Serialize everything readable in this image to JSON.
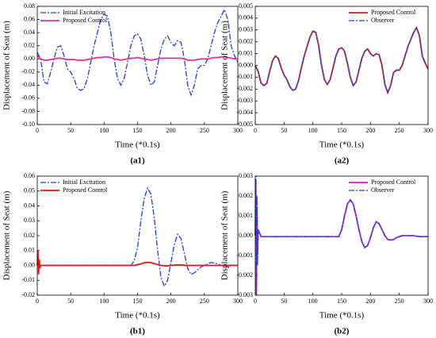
{
  "chart_data": [
    {
      "type": "line",
      "caption": "(a1)",
      "xlabel": "Time (*0.1s)",
      "ylabel": "Displacement of Seat (m)",
      "legend": "upper left",
      "xlim": [
        0,
        300
      ],
      "xticks": [
        0,
        50,
        100,
        150,
        200,
        250,
        300
      ],
      "ylim": [
        -0.1,
        0.08
      ],
      "yticks": [
        {
          "value": -0.1,
          "label": "-0.10"
        },
        -0.08,
        -0.06,
        -0.04,
        -0.02,
        {
          "value": 0,
          "label": "0.00"
        },
        0.02,
        0.04,
        0.06,
        0.08
      ],
      "x": [
        0,
        5,
        10,
        15,
        20,
        25,
        30,
        35,
        40,
        45,
        50,
        55,
        60,
        65,
        70,
        75,
        80,
        85,
        90,
        95,
        100,
        105,
        110,
        115,
        120,
        125,
        130,
        135,
        140,
        145,
        150,
        155,
        160,
        165,
        170,
        175,
        180,
        185,
        190,
        195,
        200,
        205,
        210,
        215,
        220,
        225,
        230,
        235,
        240,
        245,
        250,
        255,
        260,
        265,
        270,
        275,
        280,
        285,
        290,
        295,
        300
      ],
      "series": [
        {
          "name": "Initial Excitation",
          "color": "#1f3fd6",
          "style": "dashdot",
          "values": [
            0.01,
            0.0,
            -0.035,
            -0.038,
            -0.02,
            0.0,
            0.018,
            0.02,
            0.005,
            -0.015,
            -0.02,
            -0.03,
            -0.045,
            -0.048,
            -0.045,
            -0.03,
            -0.005,
            0.02,
            0.04,
            0.06,
            0.068,
            0.065,
            0.04,
            0.0,
            -0.03,
            -0.04,
            -0.03,
            -0.005,
            0.02,
            0.035,
            0.038,
            0.03,
            0.005,
            -0.025,
            -0.04,
            -0.035,
            -0.01,
            0.015,
            0.03,
            0.035,
            0.025,
            0.02,
            0.028,
            0.025,
            0.0,
            -0.04,
            -0.055,
            -0.04,
            -0.015,
            -0.01,
            -0.01,
            0.0,
            0.02,
            0.04,
            0.055,
            0.065,
            0.075,
            0.06,
            0.02,
            0.005,
            -0.005
          ]
        },
        {
          "name": "Proposed Control",
          "color": "#e8308f",
          "style": "solid",
          "values": [
            0.005,
            0.0,
            -0.002,
            -0.002,
            -0.001,
            0.0,
            0.001,
            0.001,
            0.0,
            -0.001,
            -0.001,
            -0.001,
            -0.002,
            -0.002,
            -0.002,
            -0.001,
            0.0,
            0.001,
            0.002,
            0.002,
            0.003,
            0.003,
            0.002,
            0.0,
            -0.001,
            -0.002,
            -0.001,
            0.0,
            0.001,
            0.001,
            0.002,
            0.001,
            0.0,
            -0.001,
            -0.002,
            -0.001,
            0.0,
            0.001,
            0.001,
            0.001,
            0.001,
            0.001,
            0.001,
            0.001,
            0.0,
            -0.002,
            -0.002,
            -0.002,
            -0.001,
            0.0,
            0.0,
            0.0,
            0.001,
            0.002,
            0.002,
            0.003,
            0.003,
            0.002,
            0.001,
            0.0,
            0.0
          ]
        }
      ]
    },
    {
      "type": "line",
      "caption": "(a2)",
      "xlabel": "Time (*0.1s)",
      "ylabel": "Displacement of Seat (m)",
      "legend": "upper right",
      "xlim": [
        0,
        300
      ],
      "xticks": [
        0,
        50,
        100,
        150,
        200,
        250,
        300
      ],
      "ylim": [
        -0.005,
        0.005
      ],
      "yticks": [
        -0.005,
        -0.004,
        -0.003,
        -0.002,
        -0.001,
        {
          "value": 0,
          "label": "0.000"
        },
        0.001,
        0.002,
        0.003,
        0.004,
        0.005
      ],
      "x": [
        0,
        5,
        10,
        15,
        20,
        25,
        30,
        35,
        40,
        45,
        50,
        55,
        60,
        65,
        70,
        75,
        80,
        85,
        90,
        95,
        100,
        105,
        110,
        115,
        120,
        125,
        130,
        135,
        140,
        145,
        150,
        155,
        160,
        165,
        170,
        175,
        180,
        185,
        190,
        195,
        200,
        205,
        210,
        215,
        220,
        225,
        230,
        235,
        240,
        245,
        250,
        255,
        260,
        265,
        270,
        275,
        280,
        285,
        290,
        295,
        300
      ],
      "series": [
        {
          "name": "Proposed Control",
          "color": "#e01818",
          "style": "solid",
          "values": [
            0.0,
            -0.0005,
            -0.0015,
            -0.0017,
            -0.0015,
            -0.0005,
            0.0004,
            0.0008,
            0.0006,
            -0.0002,
            -0.0008,
            -0.0012,
            -0.0018,
            -0.0021,
            -0.002,
            -0.0013,
            -0.0002,
            0.0008,
            0.0016,
            0.0024,
            0.0029,
            0.0028,
            0.0017,
            0.0,
            -0.0012,
            -0.0016,
            -0.0012,
            -0.0002,
            0.0008,
            0.0014,
            0.0015,
            0.0012,
            0.0002,
            -0.001,
            -0.0017,
            -0.0014,
            -0.0004,
            0.0006,
            0.0012,
            0.0014,
            0.001,
            0.0008,
            0.001,
            0.0009,
            0.0,
            -0.0016,
            -0.0023,
            -0.0017,
            -0.0006,
            -0.0004,
            -0.0004,
            0.0,
            0.0008,
            0.0016,
            0.0022,
            0.0028,
            0.0032,
            0.0025,
            0.0008,
            0.0002,
            -0.0003
          ]
        },
        {
          "name": "Observer",
          "color": "#1f3fd6",
          "style": "dashdot",
          "values": [
            0.0,
            -0.0005,
            -0.0015,
            -0.0017,
            -0.0015,
            -0.0005,
            0.0004,
            0.0008,
            0.0006,
            -0.0002,
            -0.0008,
            -0.0012,
            -0.0018,
            -0.0021,
            -0.002,
            -0.0013,
            -0.0002,
            0.0008,
            0.0016,
            0.0024,
            0.0029,
            0.0028,
            0.0017,
            0.0,
            -0.0012,
            -0.0016,
            -0.0012,
            -0.0002,
            0.0008,
            0.0014,
            0.0015,
            0.0012,
            0.0002,
            -0.001,
            -0.0017,
            -0.0014,
            -0.0004,
            0.0006,
            0.0012,
            0.0014,
            0.001,
            0.0008,
            0.001,
            0.0009,
            0.0,
            -0.0016,
            -0.0023,
            -0.0017,
            -0.0006,
            -0.0004,
            -0.0004,
            0.0,
            0.0008,
            0.0016,
            0.0022,
            0.0028,
            0.0032,
            0.0025,
            0.0008,
            0.0002,
            -0.0003
          ]
        }
      ]
    },
    {
      "type": "line",
      "caption": "(b1)",
      "xlabel": "Time (*0.1s)",
      "ylabel": "Displacement of Seat (m)",
      "legend": "upper left",
      "xlim": [
        0,
        300
      ],
      "xticks": [
        0,
        50,
        100,
        150,
        200,
        250,
        300
      ],
      "ylim": [
        -0.02,
        0.06
      ],
      "yticks": [
        -0.02,
        -0.01,
        {
          "value": 0,
          "label": "0.00"
        },
        0.01,
        0.02,
        0.03,
        0.04,
        0.05,
        0.06
      ],
      "x": [
        0,
        1,
        2,
        3,
        4,
        5,
        10,
        15,
        20,
        25,
        30,
        35,
        40,
        45,
        50,
        55,
        60,
        65,
        70,
        75,
        80,
        85,
        90,
        95,
        100,
        105,
        110,
        115,
        120,
        125,
        130,
        135,
        140,
        145,
        150,
        155,
        160,
        165,
        170,
        175,
        180,
        185,
        190,
        195,
        200,
        205,
        210,
        215,
        220,
        225,
        230,
        235,
        240,
        245,
        250,
        255,
        260,
        265,
        270,
        275,
        280,
        285,
        290,
        295,
        300
      ],
      "series": [
        {
          "name": "Initial Excitation",
          "color": "#1f3fd6",
          "style": "dashdot",
          "values": [
            0,
            0,
            0,
            0,
            0,
            0,
            0,
            0,
            0,
            0,
            0,
            0,
            0,
            0,
            0,
            0,
            0,
            0,
            0,
            0,
            0,
            0,
            0,
            0,
            0,
            0,
            0,
            0,
            0,
            0,
            0,
            0,
            0.0,
            0.003,
            0.012,
            0.03,
            0.045,
            0.052,
            0.048,
            0.032,
            0.01,
            -0.008,
            -0.014,
            -0.01,
            0.002,
            0.014,
            0.021,
            0.018,
            0.008,
            -0.002,
            -0.006,
            -0.005,
            -0.003,
            -0.001,
            0.0,
            0.001,
            0.002,
            0.0015,
            0.001,
            0.0,
            -0.0005,
            -0.0005,
            0.0,
            0.0,
            0.0
          ]
        },
        {
          "name": "Proposed Control",
          "color": "#e01818",
          "style": "solid",
          "values": [
            0.0,
            0.01,
            -0.006,
            0.004,
            -0.002,
            0,
            0,
            0,
            0,
            0,
            0,
            0,
            0,
            0,
            0,
            0,
            0,
            0,
            0,
            0,
            0,
            0,
            0,
            0,
            0,
            0,
            0,
            0,
            0,
            0,
            0,
            0,
            0,
            0,
            0.0005,
            0.001,
            0.0018,
            0.002,
            0.0018,
            0.0012,
            0.0005,
            0.0,
            -0.0003,
            -0.0003,
            0,
            0.0002,
            0.0003,
            0.0003,
            0.0001,
            0,
            0,
            0,
            0,
            0,
            0,
            0,
            0,
            0,
            0,
            0,
            0,
            0,
            0,
            0,
            0
          ]
        }
      ]
    },
    {
      "type": "line",
      "caption": "(b2)",
      "xlabel": "Time (*0.1s)",
      "ylabel": "Displacement of Seat (m)",
      "legend": "upper right",
      "xlim": [
        0,
        300
      ],
      "xticks": [
        0,
        50,
        100,
        150,
        200,
        250,
        300
      ],
      "ylim": [
        -0.003,
        0.003
      ],
      "yticks": [
        -0.003,
        -0.002,
        -0.001,
        {
          "value": 0,
          "label": "0.000"
        },
        0.001,
        0.002,
        0.003
      ],
      "x": [
        0,
        1,
        2,
        3,
        4,
        5,
        10,
        15,
        20,
        25,
        30,
        35,
        40,
        45,
        50,
        55,
        60,
        65,
        70,
        75,
        80,
        85,
        90,
        95,
        100,
        105,
        110,
        115,
        120,
        125,
        130,
        135,
        140,
        145,
        150,
        155,
        160,
        165,
        170,
        175,
        180,
        185,
        190,
        195,
        200,
        205,
        210,
        215,
        220,
        225,
        230,
        235,
        240,
        245,
        250,
        255,
        260,
        265,
        270,
        275,
        280,
        285,
        290,
        295,
        300
      ],
      "series": [
        {
          "name": "Proposed Control",
          "color": "#cc22cc",
          "style": "solid",
          "values": [
            0.0,
            0.0028,
            -0.0029,
            0.0015,
            -0.001,
            0.0003,
            -5e-05,
            -5e-05,
            -5e-05,
            -5e-05,
            -5e-05,
            -5e-05,
            -5e-05,
            -5e-05,
            -5e-05,
            -5e-05,
            -5e-05,
            -5e-05,
            -5e-05,
            -5e-05,
            -5e-05,
            -5e-05,
            -5e-05,
            -5e-05,
            -5e-05,
            -5e-05,
            -5e-05,
            -5e-05,
            -5e-05,
            -5e-05,
            -5e-05,
            -5e-05,
            -5e-05,
            -5e-05,
            0.0003,
            0.001,
            0.0016,
            0.0018,
            0.0016,
            0.001,
            0.0003,
            -0.0003,
            -0.0006,
            -0.0005,
            -0.0001,
            0.0004,
            0.0007,
            0.0006,
            0.0003,
            0.0,
            -0.0002,
            -0.00022,
            -0.0002,
            -0.0001,
            -5e-05,
            0.0,
            0.0,
            0.0,
            0.0,
            0.0,
            -3e-05,
            -5e-05,
            -5e-05,
            -5e-05,
            -5e-05
          ]
        },
        {
          "name": "Observer",
          "color": "#1f3fd6",
          "style": "dashdot",
          "values": [
            0.0,
            0.003,
            -0.003,
            0.002,
            -0.0015,
            0.0003,
            -5e-05,
            -5e-05,
            -5e-05,
            -5e-05,
            -5e-05,
            -5e-05,
            -5e-05,
            -5e-05,
            -5e-05,
            -5e-05,
            -5e-05,
            -5e-05,
            -5e-05,
            -5e-05,
            -5e-05,
            -5e-05,
            -5e-05,
            -5e-05,
            -5e-05,
            -5e-05,
            -5e-05,
            -5e-05,
            -5e-05,
            -5e-05,
            -5e-05,
            -5e-05,
            -5e-05,
            -5e-05,
            0.0003,
            0.001,
            0.0016,
            0.0018,
            0.0016,
            0.001,
            0.0003,
            -0.0003,
            -0.0006,
            -0.0005,
            -0.0001,
            0.0004,
            0.0007,
            0.0006,
            0.0003,
            0.0,
            -0.0002,
            -0.00022,
            -0.0002,
            -0.0001,
            -5e-05,
            0.0,
            0.0,
            0.0,
            0.0,
            0.0,
            -3e-05,
            -5e-05,
            -5e-05,
            -5e-05,
            -5e-05
          ]
        }
      ]
    }
  ]
}
